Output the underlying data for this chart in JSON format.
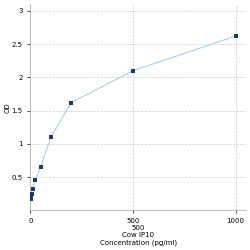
{
  "x_values": [
    1.5625,
    3.125,
    6.25,
    12.5,
    25,
    50,
    100,
    200,
    500,
    1000
  ],
  "y_values": [
    0.174,
    0.21,
    0.25,
    0.32,
    0.46,
    0.65,
    1.1,
    1.62,
    2.1,
    2.62
  ],
  "line_color": "#aacfe8",
  "marker_color": "#1a3a6b",
  "marker_size": 3,
  "marker_style": "s",
  "xlabel_line1": "500",
  "xlabel_line2": "Cow IP10",
  "xlabel_line3": "Concentration (pg/ml)",
  "ylabel": "OD",
  "xlim": [
    0,
    1050
  ],
  "ylim": [
    0.0,
    3.1
  ],
  "yticks": [
    0.5,
    1.0,
    1.5,
    2.0,
    2.5,
    3.0
  ],
  "ytick_labels": [
    "0.5",
    "1",
    "1.5",
    "2",
    "2.5",
    "3"
  ],
  "xticks": [
    0,
    500,
    1000
  ],
  "xtick_labels": [
    "0",
    "500",
    "1000"
  ],
  "grid_color": "#cccccc",
  "grid_style": "--",
  "background_color": "#ffffff",
  "line_width": 0.8,
  "axis_fontsize": 5
}
